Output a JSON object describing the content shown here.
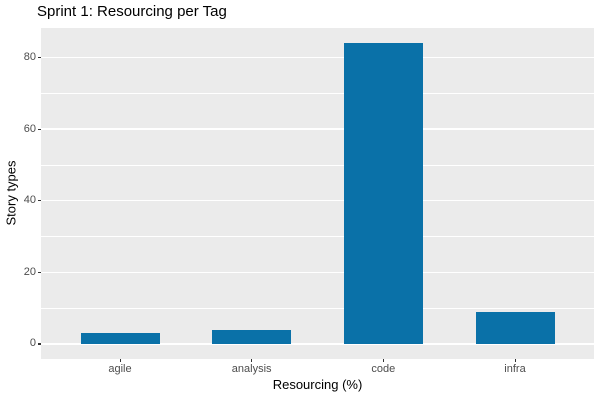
{
  "chart_data": {
    "type": "bar",
    "title": "Sprint 1: Resourcing per Tag",
    "xlabel": "Resourcing (%)",
    "ylabel": "Story types",
    "categories": [
      "agile",
      "analysis",
      "code",
      "infra"
    ],
    "values": [
      3,
      4,
      84,
      9
    ],
    "ylim": [
      0,
      84
    ],
    "y_major_ticks": [
      0,
      20,
      40,
      60,
      80
    ],
    "y_minor_ticks": [
      10,
      30,
      50,
      70
    ],
    "grid": "on",
    "legend": "none",
    "colors": {
      "bar_fill": "#0A71A8",
      "panel_background": "#EBEBEB",
      "gridline": "#FFFFFF",
      "tick_label_text": "#4D4D4D",
      "tick_mark": "#333333",
      "title_text": "#000000",
      "plot_background": "#FFFFFF"
    }
  }
}
